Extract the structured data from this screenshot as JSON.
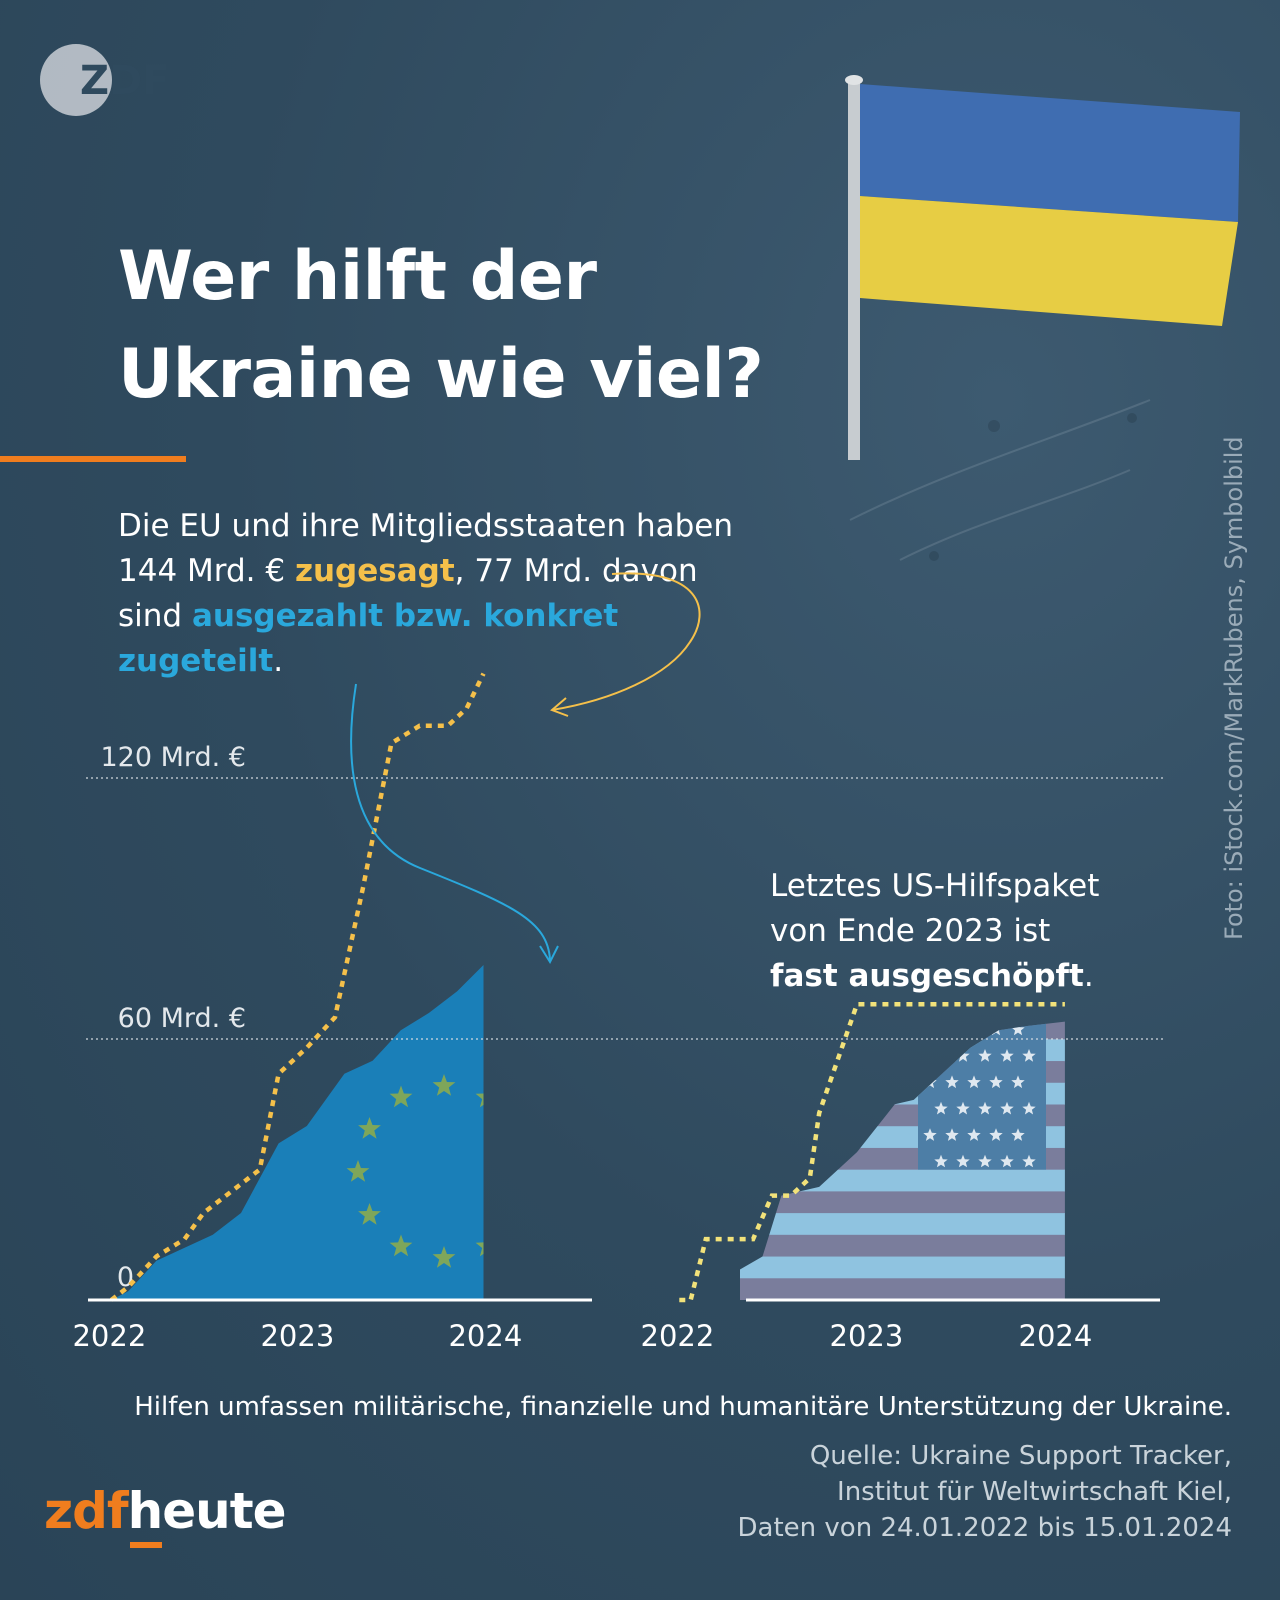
{
  "brand": {
    "corner_logo": "ZDF",
    "footer_zdf": "zdf",
    "footer_heute": "heute"
  },
  "title": {
    "line1": "Wer hilft der",
    "line2": "Ukraine wie viel?"
  },
  "intro": {
    "part1": "Die EU und ihre Mitgliedsstaaten haben 144 Mrd. € ",
    "pledged": "zugesagt",
    "part2": ", 77 Mrd. davon sind ",
    "allocated": "ausgezahlt bzw. konkret zugeteilt",
    "part3": "."
  },
  "us_note": {
    "line1": "Letztes US-Hilfspaket",
    "line2": "von Ende 2023 ist",
    "bold": "fast ausgeschöpft",
    "end": "."
  },
  "photo_credit": "Foto: iStock.com/MarkRubens, Symbolbild",
  "footnote": "Hilfen umfassen militärische, finanzielle und humanitäre Unterstützung der Ukraine.",
  "source": {
    "line1": "Quelle: Ukraine Support Tracker,",
    "line2": "Institut für Weltwirtschaft Kiel,",
    "line3": "Daten von 24.01.2022 bis 15.01.2024"
  },
  "colors": {
    "background": "#2f4a5e",
    "pledged": "#f5c04a",
    "allocated_eu": "#1a7fb8",
    "us_pledged": "#f2e27a",
    "accent": "#f07d1e"
  },
  "icons": [
    "zdf-logo",
    "ukraine-flag",
    "eu-flag-stars",
    "us-flag-stripes"
  ],
  "chart_data": [
    {
      "type": "area",
      "region": "EU",
      "ylim": [
        0,
        144
      ],
      "yticks": [
        {
          "value": 120,
          "label": "120 Mrd. €"
        },
        {
          "value": 60,
          "label": "60 Mrd. €"
        },
        {
          "value": 0,
          "label": "0"
        }
      ],
      "xticks": [
        "2022",
        "2023",
        "2024"
      ],
      "series": [
        {
          "x": [
            2022.06,
            2022.15,
            2022.3,
            2022.45,
            2022.55,
            2022.7,
            2022.85,
            2022.95,
            2023.1,
            2023.25,
            2023.4,
            2023.55,
            2023.7,
            2023.85,
            2023.95,
            2024.04
          ],
          "values": [
            0,
            3,
            10,
            14,
            20,
            25,
            30,
            52,
            58,
            65,
            95,
            128,
            132,
            132,
            136,
            144
          ]
        },
        {
          "x": [
            2022.06,
            2022.15,
            2022.3,
            2022.45,
            2022.6,
            2022.75,
            2022.95,
            2023.1,
            2023.3,
            2023.45,
            2023.6,
            2023.75,
            2023.9,
            2024.04
          ],
          "values": [
            0,
            2,
            9,
            12,
            15,
            20,
            36,
            40,
            52,
            55,
            62,
            66,
            71,
            77
          ]
        }
      ]
    },
    {
      "type": "area",
      "region": "USA",
      "ylim": [
        0,
        144
      ],
      "xticks": [
        "2022",
        "2023",
        "2024"
      ],
      "series": [
        {
          "x": [
            2022.06,
            2022.12,
            2022.2,
            2022.45,
            2022.55,
            2022.65,
            2022.75,
            2022.8,
            2023.0,
            2024.1
          ],
          "values": [
            0,
            0,
            14,
            14,
            24,
            24,
            28,
            43,
            68,
            68
          ]
        },
        {
          "x": [
            2022.06,
            2022.12,
            2022.3,
            2022.5,
            2022.6,
            2022.8,
            2023.0,
            2023.2,
            2023.3,
            2023.45,
            2023.6,
            2023.75,
            2023.9,
            2024.1
          ],
          "values": [
            0,
            0,
            5,
            10,
            24,
            26,
            34,
            45,
            46,
            52,
            58,
            62,
            63,
            64
          ]
        }
      ]
    }
  ]
}
